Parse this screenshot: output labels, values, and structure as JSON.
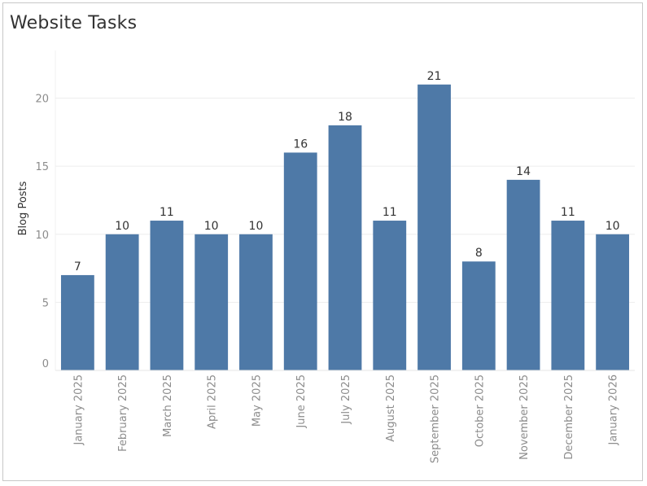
{
  "title": "Website Tasks",
  "colors": {
    "bar": "#4e79a7",
    "grid": "#ededed",
    "axis": "#e6e6e6"
  },
  "chart_data": {
    "type": "bar",
    "title": "Website Tasks",
    "xlabel": "",
    "ylabel": "Blog Posts",
    "ylim": [
      0,
      23.5
    ],
    "yticks": [
      0,
      5,
      10,
      15,
      20
    ],
    "grid": true,
    "data_labels": true,
    "categories": [
      "January 2025",
      "February 2025",
      "March 2025",
      "April 2025",
      "May 2025",
      "June 2025",
      "July 2025",
      "August 2025",
      "September 2025",
      "October 2025",
      "November 2025",
      "December 2025",
      "January 2026"
    ],
    "values": [
      7,
      10,
      11,
      10,
      10,
      16,
      18,
      11,
      21,
      8,
      14,
      11,
      10
    ]
  }
}
